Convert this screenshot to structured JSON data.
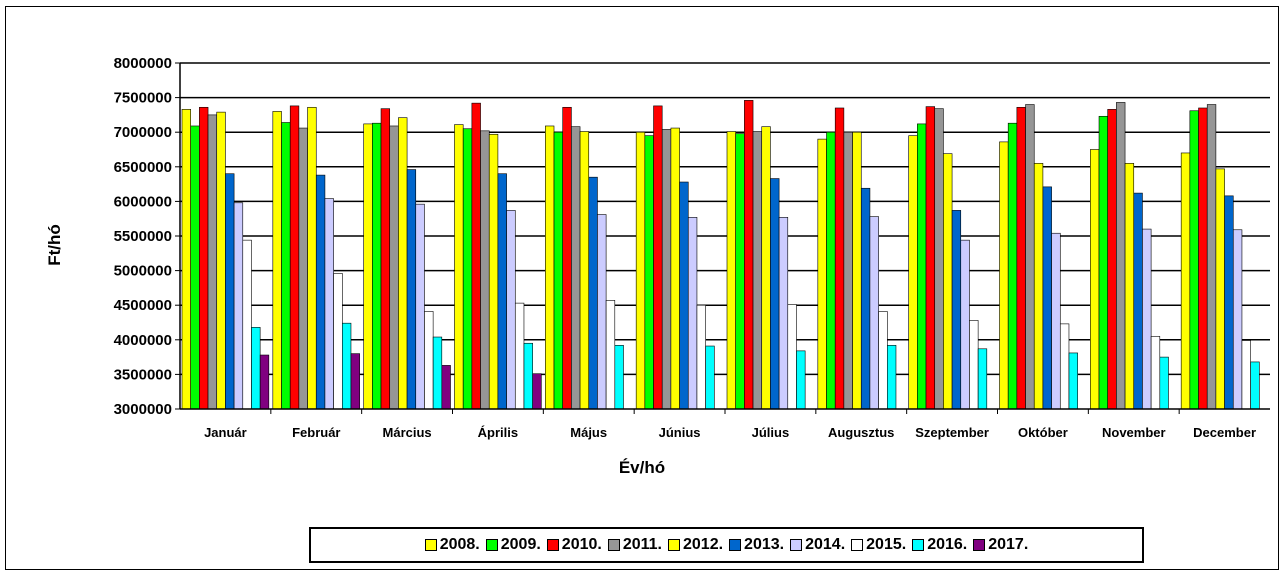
{
  "chart_data": {
    "type": "bar",
    "title": "",
    "xlabel": "Év/hó",
    "ylabel": "Ft/hó",
    "ylim": [
      3000000,
      8000000
    ],
    "yticks": [
      "8000000",
      "7500000",
      "7000000",
      "6500000",
      "6000000",
      "5500000",
      "5000000",
      "4500000",
      "4000000",
      "3500000",
      "3000000"
    ],
    "grid": true,
    "legend_position": "bottom",
    "categories": [
      "Január",
      "Február",
      "Március",
      "Április",
      "Május",
      "Június",
      "Július",
      "Augusztus",
      "Szeptember",
      "Október",
      "November",
      "December"
    ],
    "series": [
      {
        "name": "2008.",
        "color": "#FFFF00",
        "values": [
          7330000,
          7300000,
          7120000,
          7110000,
          7090000,
          7000000,
          7010000,
          6900000,
          6950000,
          6860000,
          6750000,
          6700000
        ]
      },
      {
        "name": "2009.",
        "color": "#00FF00",
        "values": [
          7090000,
          7140000,
          7130000,
          7050000,
          7000000,
          6950000,
          6980000,
          7000000,
          7120000,
          7130000,
          7230000,
          7310000
        ]
      },
      {
        "name": "2010.",
        "color": "#FF0000",
        "values": [
          7360000,
          7380000,
          7340000,
          7420000,
          7360000,
          7380000,
          7460000,
          7350000,
          7370000,
          7360000,
          7330000,
          7350000
        ]
      },
      {
        "name": "2011.",
        "color": "#969696",
        "values": [
          7250000,
          7060000,
          7090000,
          7020000,
          7080000,
          7040000,
          7010000,
          7000000,
          7340000,
          7400000,
          7430000,
          7400000
        ]
      },
      {
        "name": "2012.",
        "color": "#FFFF00",
        "values": [
          7290000,
          7360000,
          7210000,
          6970000,
          7010000,
          7060000,
          7080000,
          7000000,
          6690000,
          6550000,
          6550000,
          6470000
        ]
      },
      {
        "name": "2013.",
        "color": "#0066CC",
        "values": [
          6400000,
          6380000,
          6460000,
          6400000,
          6350000,
          6280000,
          6330000,
          6190000,
          5870000,
          6210000,
          6120000,
          6080000
        ]
      },
      {
        "name": "2014.",
        "color": "#CCCCFF",
        "values": [
          5980000,
          6040000,
          5960000,
          5870000,
          5810000,
          5770000,
          5770000,
          5780000,
          5440000,
          5540000,
          5600000,
          5590000
        ]
      },
      {
        "name": "2015.",
        "color": "#FFFFFF",
        "values": [
          5440000,
          4960000,
          4410000,
          4530000,
          4570000,
          4500000,
          4510000,
          4410000,
          4280000,
          4230000,
          4050000,
          3990000
        ]
      },
      {
        "name": "2016.",
        "color": "#00FFFF",
        "values": [
          4180000,
          4240000,
          4040000,
          3950000,
          3920000,
          3910000,
          3840000,
          3920000,
          3870000,
          3810000,
          3750000,
          3680000
        ]
      },
      {
        "name": "2017.",
        "color": "#800080",
        "values": [
          3780000,
          3800000,
          3630000,
          3510000,
          null,
          null,
          null,
          null,
          null,
          null,
          null,
          null
        ]
      }
    ]
  }
}
